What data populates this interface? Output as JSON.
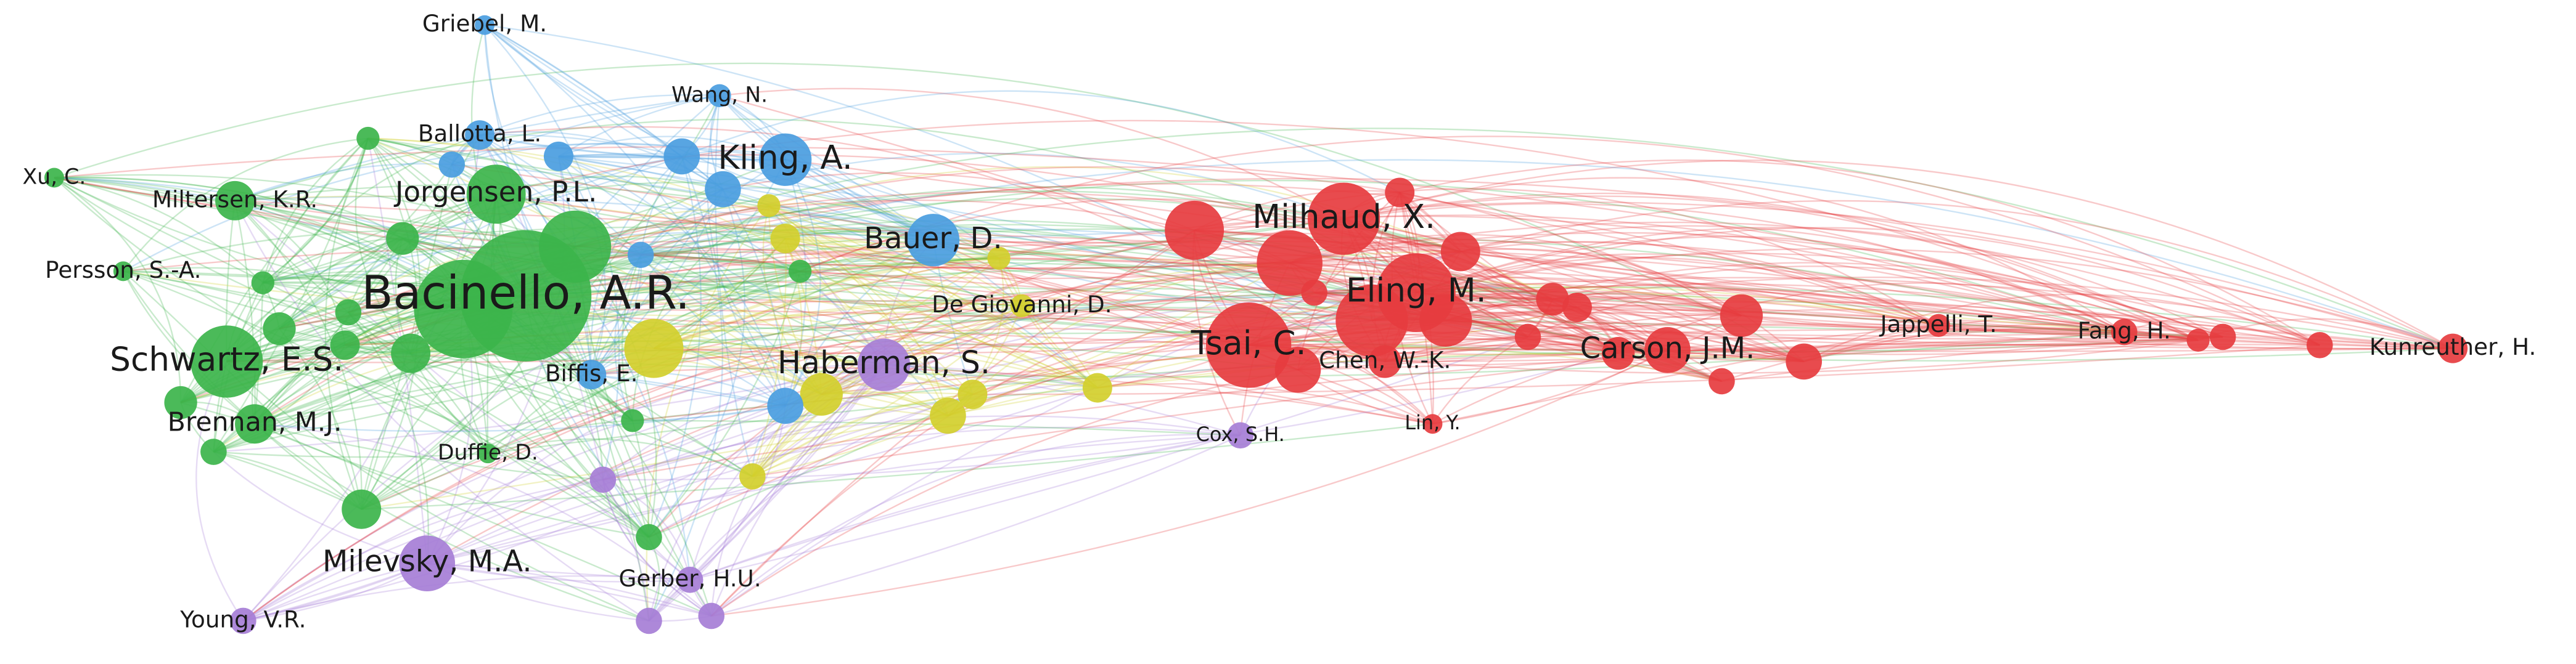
{
  "nodes": [
    {
      "label": "Griebel, M."
    },
    {
      "label": "Wang, N."
    },
    {
      "label": "Ballotta, L."
    },
    {
      "label": "Kling, A."
    },
    {
      "label": "Xu, C."
    },
    {
      "label": "Miltersen, K.R."
    },
    {
      "label": "Jorgensen, P.L."
    },
    {
      "label": "Milhaud, X."
    },
    {
      "label": "Bauer, D."
    },
    {
      "label": "Persson, S.-A."
    },
    {
      "label": "Bacinello, A.R."
    },
    {
      "label": "Eling, M."
    },
    {
      "label": "De Giovanni, D."
    },
    {
      "label": "Jappelli, T."
    },
    {
      "label": "Fang, H."
    },
    {
      "label": "Kunreuther, H."
    },
    {
      "label": "Schwartz, E.S."
    },
    {
      "label": "Tsai, C."
    },
    {
      "label": "Carson, J.M."
    },
    {
      "label": "Haberman, S."
    },
    {
      "label": "Chen, W.-K."
    },
    {
      "label": "Brennan, M.J."
    },
    {
      "label": "Biffis, E."
    },
    {
      "label": "Cox, S.H."
    },
    {
      "label": "Lin, Y."
    },
    {
      "label": "Duffie, D."
    },
    {
      "label": "Milevsky, M.A."
    },
    {
      "label": "Gerber, H.U."
    },
    {
      "label": "Young, V.R."
    }
  ]
}
